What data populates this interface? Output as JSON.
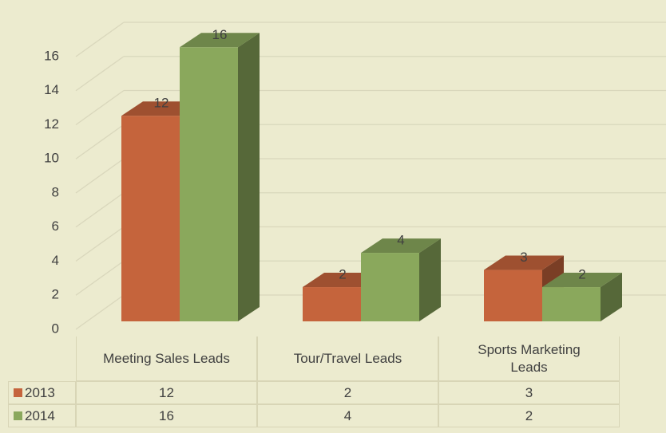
{
  "chart_data": {
    "type": "bar3d",
    "categories": [
      "Meeting Sales Leads",
      "Tour/Travel Leads",
      "Sports Marketing Leads"
    ],
    "series": [
      {
        "name": "2013",
        "color": "#c5643c",
        "values": [
          12,
          2,
          3
        ]
      },
      {
        "name": "2014",
        "color": "#8aa85c",
        "values": [
          16,
          4,
          2
        ]
      }
    ],
    "ylim": [
      0,
      16
    ],
    "yticks": [
      0,
      2,
      4,
      6,
      8,
      10,
      12,
      14,
      16
    ],
    "grid": true,
    "data_table": true
  }
}
